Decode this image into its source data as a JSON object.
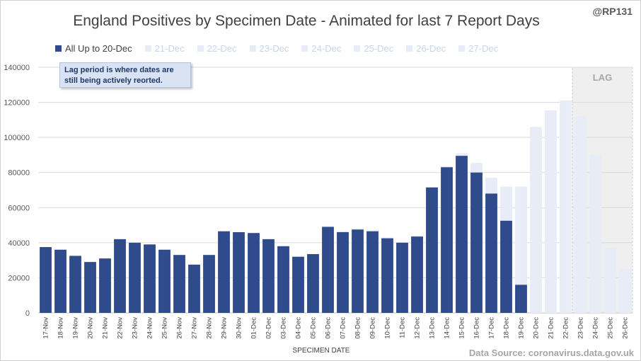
{
  "title": "England Positives by Specimen Date - Animated for last 7 Report Days",
  "handle": "@RP131",
  "source": "Data Source: coronavirus.data.gov.uk",
  "note": "Lag period is where dates are still being actively reorted.",
  "lag_label": "LAG",
  "colors": {
    "primary_series": "#2f4b8c",
    "later_series": "#e7ecf6",
    "lag_band": "#efefef",
    "grid": "#d9d9d9"
  },
  "chart_data": {
    "type": "bar",
    "title": "England Positives by Specimen Date - Animated for last 7 Report Days",
    "xlabel": "SPECIMEN DATE",
    "ylabel": "",
    "ylim": [
      0,
      140000
    ],
    "yticks": [
      "0",
      "20000",
      "40000",
      "60000",
      "80000",
      "100000",
      "120000",
      "140000"
    ],
    "categories": [
      "17-Nov",
      "18-Nov",
      "19-Nov",
      "20-Nov",
      "21-Nov",
      "22-Nov",
      "23-Nov",
      "24-Nov",
      "25-Nov",
      "26-Nov",
      "27-Nov",
      "28-Nov",
      "29-Nov",
      "30-Nov",
      "01-Dec",
      "02-Dec",
      "03-Dec",
      "04-Dec",
      "05-Dec",
      "06-Dec",
      "07-Dec",
      "08-Dec",
      "09-Dec",
      "10-Dec",
      "11-Dec",
      "12-Dec",
      "13-Dec",
      "14-Dec",
      "15-Dec",
      "16-Dec",
      "17-Dec",
      "18-Dec",
      "19-Dec",
      "20-Dec",
      "21-Dec",
      "22-Dec",
      "23-Dec",
      "24-Dec",
      "25-Dec",
      "26-Dec"
    ],
    "series": [
      {
        "name": "All Up to 20-Dec",
        "values": [
          37500,
          36000,
          32500,
          29000,
          31000,
          42000,
          40000,
          39000,
          36000,
          33000,
          27500,
          33000,
          46500,
          46000,
          45500,
          42000,
          38000,
          32000,
          33500,
          49000,
          46000,
          47500,
          46500,
          42500,
          40000,
          43500,
          71500,
          83000,
          89500,
          80000,
          68000,
          52500,
          16000,
          0,
          0,
          0,
          0,
          0,
          0,
          0
        ]
      },
      {
        "name": "27-Dec",
        "values": [
          37500,
          36000,
          32500,
          29000,
          31000,
          42000,
          40000,
          39000,
          36000,
          33000,
          27500,
          33000,
          46500,
          46000,
          45500,
          42000,
          38000,
          32000,
          33500,
          49500,
          46500,
          48000,
          47000,
          43000,
          40000,
          44000,
          71500,
          83500,
          91000,
          85500,
          77000,
          72000,
          72000,
          106000,
          115500,
          121000,
          112000,
          90000,
          37000,
          25000
        ]
      }
    ],
    "legend": [
      "All Up to 20-Dec",
      "21-Dec",
      "22-Dec",
      "23-Dec",
      "24-Dec",
      "25-Dec",
      "26-Dec",
      "27-Dec"
    ],
    "lag_start_category": "23-Dec"
  }
}
